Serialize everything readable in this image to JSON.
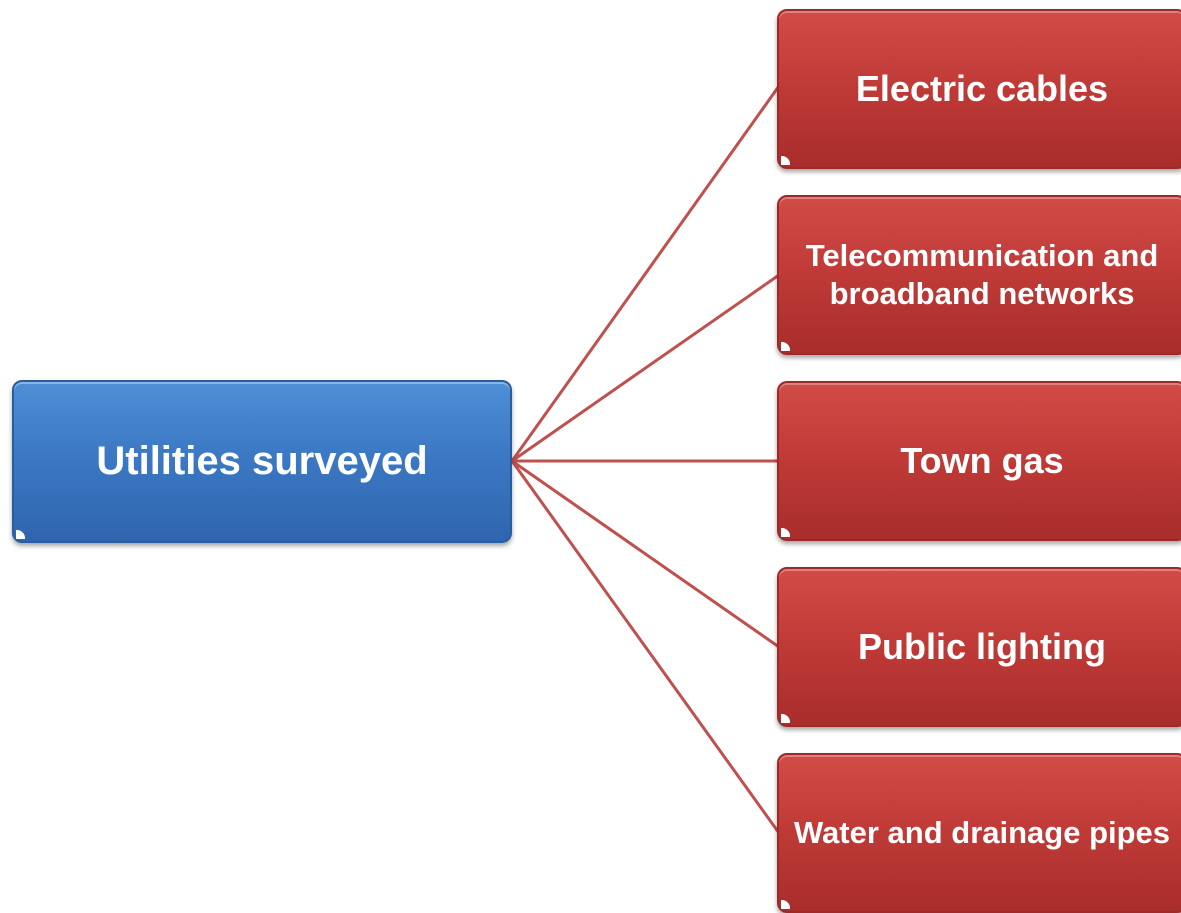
{
  "diagram": {
    "root": {
      "label": "Utilities surveyed"
    },
    "children": [
      {
        "label": "Electric cables"
      },
      {
        "label": "Telecommunication and broadband networks"
      },
      {
        "label": "Town gas"
      },
      {
        "label": "Public lighting"
      },
      {
        "label": "Water and drainage pipes"
      }
    ]
  },
  "colors": {
    "root_fill": "#3c79c4",
    "child_fill": "#c13b38",
    "connector": "#c0504d",
    "text": "#ffffff"
  }
}
